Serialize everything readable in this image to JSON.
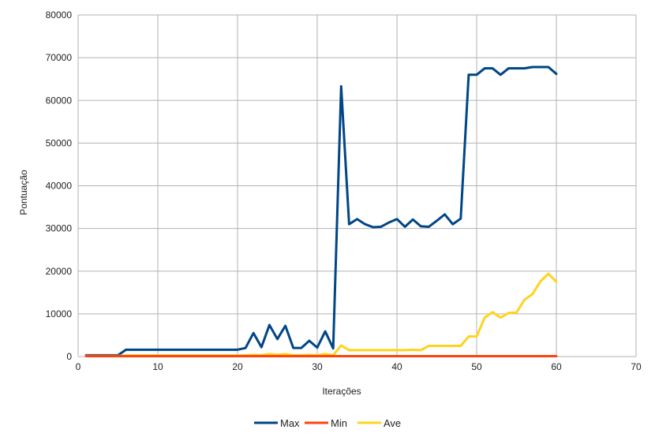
{
  "chart_data": {
    "type": "line",
    "xlabel": "Iterações",
    "ylabel": "Pontuação",
    "xlim": [
      0,
      70
    ],
    "ylim": [
      0,
      80000
    ],
    "x_ticks": [
      0,
      10,
      20,
      30,
      40,
      50,
      60,
      70
    ],
    "y_ticks": [
      0,
      10000,
      20000,
      30000,
      40000,
      50000,
      60000,
      70000,
      80000
    ],
    "grid": true,
    "legend_position": "bottom",
    "x": [
      1,
      2,
      3,
      4,
      5,
      6,
      7,
      8,
      9,
      10,
      11,
      12,
      13,
      14,
      15,
      16,
      17,
      18,
      19,
      20,
      21,
      22,
      23,
      24,
      25,
      26,
      27,
      28,
      29,
      30,
      31,
      32,
      33,
      34,
      35,
      36,
      37,
      38,
      39,
      40,
      41,
      42,
      43,
      44,
      45,
      46,
      47,
      48,
      49,
      50,
      51,
      52,
      53,
      54,
      55,
      56,
      57,
      58,
      59,
      60
    ],
    "series": [
      {
        "name": "Max",
        "color": "#004586",
        "values": [
          300,
          300,
          300,
          300,
          300,
          1600,
          1600,
          1600,
          1600,
          1600,
          1600,
          1600,
          1600,
          1600,
          1600,
          1600,
          1600,
          1600,
          1600,
          1600,
          2000,
          5500,
          2200,
          7400,
          4100,
          7200,
          2000,
          2000,
          3700,
          2100,
          5900,
          1900,
          63300,
          31000,
          32200,
          31000,
          30300,
          30400,
          31400,
          32200,
          30400,
          32100,
          30500,
          30400,
          31800,
          33300,
          31000,
          32300,
          66000,
          66000,
          67500,
          67500,
          66000,
          67500,
          67500,
          67500,
          67800,
          67800,
          67800,
          66200
        ]
      },
      {
        "name": "Min",
        "color": "#ff420e",
        "values": [
          100,
          100,
          100,
          100,
          100,
          100,
          100,
          100,
          100,
          100,
          100,
          100,
          100,
          100,
          100,
          100,
          100,
          100,
          100,
          100,
          100,
          100,
          100,
          100,
          100,
          100,
          100,
          100,
          100,
          100,
          100,
          100,
          100,
          100,
          100,
          100,
          100,
          100,
          100,
          100,
          100,
          100,
          100,
          100,
          100,
          100,
          100,
          100,
          100,
          100,
          100,
          100,
          100,
          100,
          100,
          100,
          100,
          100,
          100,
          100
        ]
      },
      {
        "name": "Ave",
        "color": "#ffd320",
        "values": [
          150,
          150,
          150,
          150,
          150,
          250,
          250,
          250,
          250,
          250,
          250,
          250,
          250,
          250,
          250,
          250,
          250,
          250,
          250,
          250,
          300,
          400,
          300,
          600,
          400,
          600,
          300,
          300,
          400,
          300,
          600,
          300,
          2600,
          1500,
          1500,
          1500,
          1500,
          1500,
          1500,
          1500,
          1500,
          1600,
          1500,
          2500,
          2500,
          2500,
          2500,
          2500,
          4700,
          4700,
          9100,
          10400,
          9100,
          10200,
          10300,
          13300,
          14600,
          17600,
          19400,
          17500
        ]
      }
    ]
  }
}
